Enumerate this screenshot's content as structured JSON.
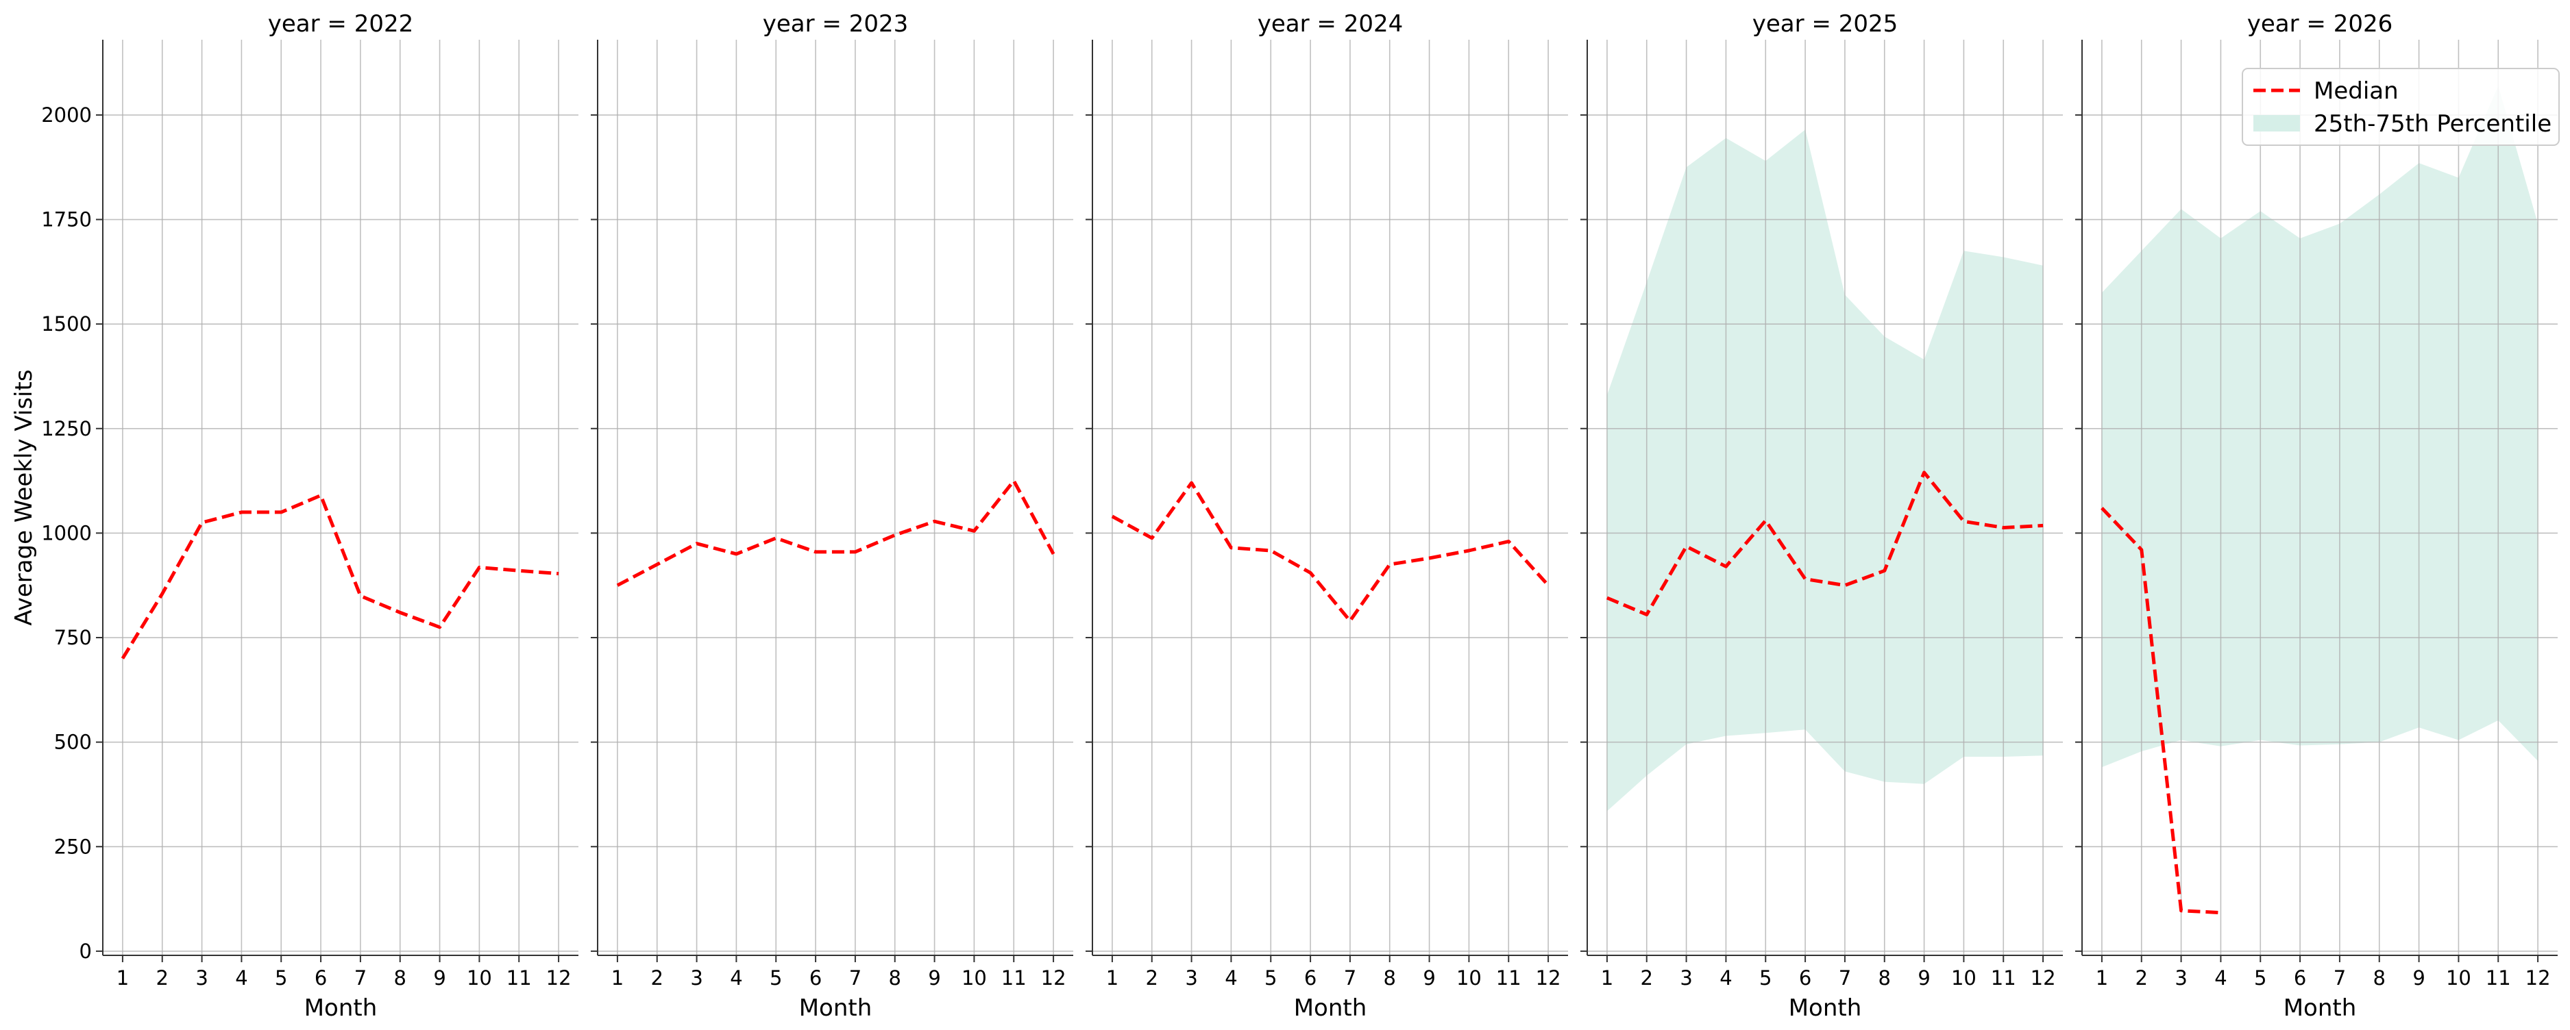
{
  "chart_data": {
    "type": "line",
    "ylabel": "Average Weekly Visits",
    "xlabel": "Month",
    "x": [
      1,
      2,
      3,
      4,
      5,
      6,
      7,
      8,
      9,
      10,
      11,
      12
    ],
    "x_ticks": [
      "1",
      "2",
      "3",
      "4",
      "5",
      "6",
      "7",
      "8",
      "9",
      "10",
      "11",
      "12"
    ],
    "xlim": [
      0.5,
      12.5
    ],
    "ylim": [
      -10,
      2180
    ],
    "y_ticks": [
      0,
      250,
      500,
      750,
      1000,
      1250,
      1500,
      1750,
      2000
    ],
    "grid": true,
    "shared_y": true,
    "legend": {
      "placement": "top-right",
      "entries": [
        {
          "label": "Median",
          "style": "dashed-line",
          "color": "#ff0000"
        },
        {
          "label": "25th-75th Percentile",
          "style": "filled-band",
          "color": "#d6efe8"
        }
      ]
    },
    "panels": [
      {
        "title": "year = 2022",
        "median": [
          700,
          855,
          1025,
          1050,
          1050,
          1090,
          850,
          810,
          775,
          918,
          910,
          903
        ],
        "band": null
      },
      {
        "title": "year = 2023",
        "median": [
          875,
          925,
          975,
          950,
          988,
          955,
          955,
          995,
          1028,
          1005,
          1125,
          950
        ],
        "band": null
      },
      {
        "title": "year = 2024",
        "median": [
          1040,
          988,
          1120,
          965,
          958,
          905,
          790,
          925,
          940,
          958,
          980,
          875
        ],
        "band": null
      },
      {
        "title": "year = 2025",
        "median": [
          845,
          805,
          968,
          920,
          1030,
          890,
          875,
          910,
          1145,
          1028,
          1013,
          1018
        ],
        "band": {
          "x": [
            1,
            2,
            3,
            4,
            5,
            6,
            7,
            8,
            9,
            10,
            11,
            12
          ],
          "low": [
            335,
            420,
            495,
            515,
            522,
            530,
            430,
            405,
            400,
            465,
            465,
            468
          ],
          "high": [
            1330,
            1600,
            1875,
            1945,
            1890,
            1965,
            1570,
            1470,
            1415,
            1675,
            1660,
            1640
          ]
        }
      },
      {
        "title": "year = 2026",
        "median": [
          1060,
          960,
          97,
          92
        ],
        "median_x": [
          1,
          2,
          3,
          4
        ],
        "band": {
          "x": [
            1,
            2,
            3,
            4,
            5,
            6,
            7,
            8,
            9,
            10,
            11,
            12
          ],
          "low": [
            440,
            478,
            505,
            490,
            505,
            492,
            495,
            500,
            535,
            505,
            552,
            455
          ],
          "high": [
            1575,
            1675,
            1775,
            1705,
            1770,
            1705,
            1740,
            1810,
            1885,
            1850,
            2070,
            1740
          ]
        }
      }
    ]
  }
}
